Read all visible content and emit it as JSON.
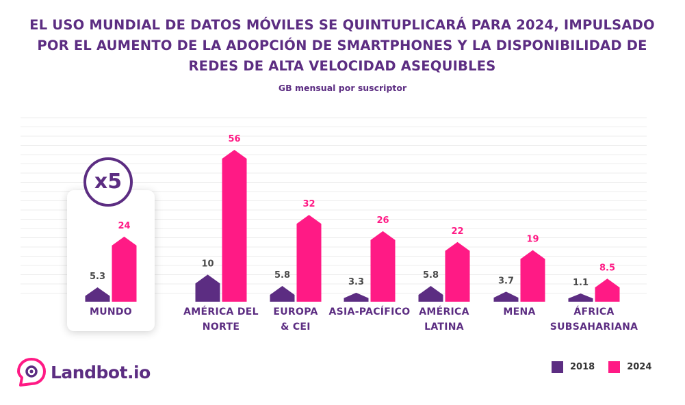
{
  "title_lines": [
    "EL USO MUNDIAL DE DATOS MÓVILES SE QUINTUPLICARÁ PARA 2024, IMPULSADO",
    "POR EL AUMENTO DE LA ADOPCIÓN DE SMARTPHONES Y LA DISPONIBILIDAD DE",
    "REDES DE ALTA VELOCIDAD ASEQUIBLES"
  ],
  "subtitle": "GB mensual por suscriptor",
  "highlight_badge": "x5",
  "brand": {
    "name": "Landbot.io",
    "color": "#5c2d82",
    "icon": "chat-bubble-eye-icon"
  },
  "colors": {
    "series_2018": "#5c2d82",
    "series_2024": "#ff1a85",
    "text": "#5c2d82"
  },
  "chart_data": {
    "type": "bar",
    "title": "EL USO MUNDIAL DE DATOS MÓVILES SE QUINTUPLICARÁ PARA 2024, IMPULSADO POR EL AUMENTO DE LA ADOPCIÓN DE SMARTPHONES Y LA DISPONIBILIDAD DE REDES DE ALTA VELOCIDAD ASEQUIBLES",
    "subtitle": "GB mensual por suscriptor",
    "categories": [
      [
        "MUNDO"
      ],
      [
        "AMÉRICA DEL",
        "NORTE"
      ],
      [
        "EUROPA",
        "& CEI"
      ],
      [
        "ASIA-PACÍFICO"
      ],
      [
        "AMÉRICA",
        "LATINA"
      ],
      [
        "MENA"
      ],
      [
        "ÁFRICA",
        "SUBSAHARIANA"
      ]
    ],
    "series": [
      {
        "name": "2018",
        "color": "#5c2d82",
        "values": [
          5.3,
          10,
          5.8,
          3.3,
          5.8,
          3.7,
          1.1
        ],
        "labels": [
          "5.3",
          "10",
          "5.8",
          "3.3",
          "5.8",
          "3.7",
          "1.1"
        ]
      },
      {
        "name": "2024",
        "color": "#ff1a85",
        "values": [
          24,
          56,
          32,
          26,
          22,
          19,
          8.5
        ],
        "labels": [
          "24",
          "56",
          "32",
          "26",
          "22",
          "19",
          "8.5"
        ]
      }
    ],
    "ylim": [
      0,
      56
    ],
    "grid": true,
    "legend_position": "bottom-right"
  }
}
